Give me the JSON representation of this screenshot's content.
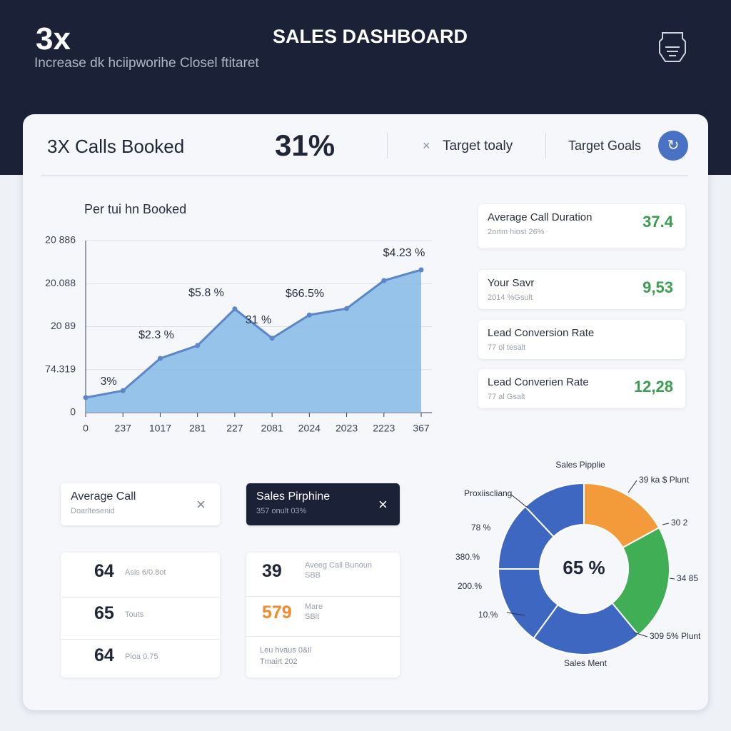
{
  "header": {
    "badge": "3x",
    "subtitle": "Increase dk hciipworihe Closel ftitaret",
    "title": "SALES DASHBOARD"
  },
  "summary": {
    "calls": "3X Calls Booked",
    "rate": "31%",
    "target_today": "Target toaly",
    "target_goals": "Target Goals"
  },
  "chart_data": [
    {
      "type": "area",
      "title": "Per tui hn Booked",
      "categories": [
        "0",
        "237",
        "1017",
        "281",
        "227",
        "2081",
        "2024",
        "2023",
        "2223",
        "367"
      ],
      "values": [
        0.35,
        0.51,
        1.26,
        1.56,
        2.41,
        1.73,
        2.27,
        2.42,
        3.07,
        3.32
      ],
      "color": "#5b86c8",
      "ylim": [
        0,
        4
      ],
      "yticks": [
        0,
        {
          "value": 1,
          "label": "74.319"
        },
        {
          "value": 2,
          "label": "20 89"
        },
        {
          "value": 3,
          "label": "20.088"
        },
        {
          "value": 4,
          "label": "20 886"
        }
      ],
      "grid": true,
      "annotations": [
        "3%",
        "$2.3 %",
        "$5.8 %",
        "31 %",
        "$66.5%",
        "$4.23 %"
      ]
    },
    {
      "type": "donut",
      "title": "Sales Pipplie",
      "center_label": "65 %",
      "values": [
        17,
        22,
        21,
        15,
        13,
        12
      ],
      "colors": [
        "#f39a3a",
        "#3fae55",
        "#3d67c0",
        "#3d67c0",
        "#3d67c0",
        "#3d67c0"
      ],
      "callouts": [
        "39 ka $ Plunt",
        "30 2",
        "34 85",
        "309 5% Plunt",
        "Sales Ment",
        "Proxiiscliang",
        "78 %",
        "380.%",
        "200.%",
        "10.%"
      ]
    }
  ],
  "side_cards": [
    {
      "title": "Average Call Duration",
      "sub": "2ortm hiost 26%",
      "value": "37.4"
    },
    {
      "title": "Your Savr",
      "sub": "2014 %Gsult",
      "value": "9,53"
    },
    {
      "title": "Lead Conversion Rate",
      "sub": "77 ol tesalt"
    },
    {
      "title": "Lead Converien Rate",
      "sub": "77 al Gsalt",
      "value": "12,28"
    }
  ],
  "tabs": [
    {
      "title": "Average Call",
      "sub": "Doarltesenid"
    },
    {
      "title": "Sales Pirphine",
      "sub": "357 onult 03%"
    }
  ],
  "left_list": [
    {
      "value": "64",
      "label": "Asis 6/0.8ot"
    },
    {
      "value": "65",
      "label": "Touts"
    },
    {
      "value": "64",
      "label": "Pioa 0.75"
    }
  ],
  "mid_list": [
    {
      "value": "39",
      "label": "Aveeg Call Bunoun",
      "sub": "SBB"
    },
    {
      "value": "579",
      "label": "Mare",
      "sub": "SBit"
    }
  ],
  "mid_footer": [
    "Leu hvaus 0&il",
    "Tmairt 202"
  ]
}
